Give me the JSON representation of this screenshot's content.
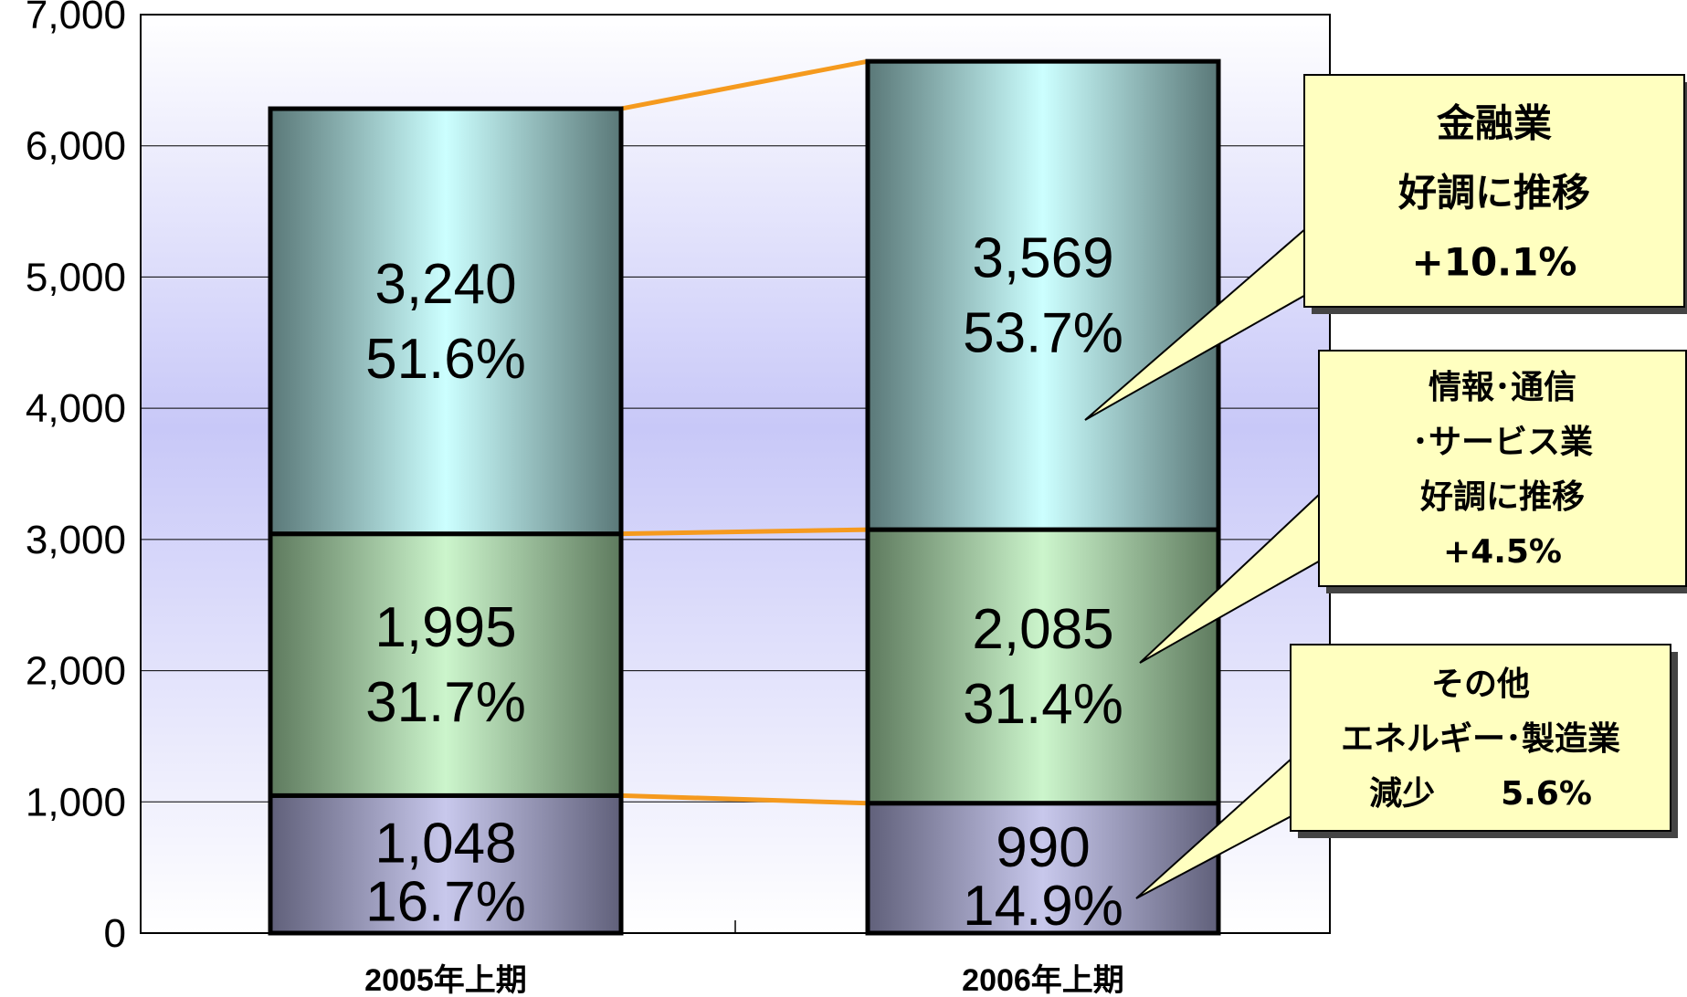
{
  "chart_data": {
    "type": "bar",
    "stacked": true,
    "categories": [
      "2005年上期",
      "2006年上期"
    ],
    "series": [
      {
        "values": [
          1048,
          990
        ],
        "percent_labels": [
          "16.7%",
          "14.9%"
        ]
      },
      {
        "values": [
          1995,
          2085
        ],
        "percent_labels": [
          "31.7%",
          "31.4%"
        ]
      },
      {
        "values": [
          3240,
          3569
        ],
        "percent_labels": [
          "51.6%",
          "53.7%"
        ]
      }
    ],
    "ylim": [
      0,
      7000
    ],
    "yticks": [
      "0",
      "1,000",
      "2,000",
      "3,000",
      "4,000",
      "5,000",
      "6,000",
      "7,000"
    ],
    "grid": true,
    "callouts": [
      {
        "lines": [
          "金融業",
          "好調に推移",
          "+10.1%"
        ],
        "points_to_series": 2
      },
      {
        "lines": [
          "情報･通信",
          "･サービス業",
          "好調に推移",
          "+4.5%"
        ],
        "points_to_series": 1
      },
      {
        "lines": [
          "その他",
          "エネルギー･製造業",
          "減少　　5.6%"
        ],
        "points_to_series": 0
      }
    ],
    "colors": {
      "series0_edge": "#60607a",
      "series0_mid": "#c8c8ec",
      "series1_edge": "#5e7a5e",
      "series1_mid": "#ccf5cc",
      "series2_edge": "#5a7878",
      "series2_mid": "#ccffff",
      "connector": "#f59a1e",
      "callout_fill": "#ffffc0"
    }
  }
}
